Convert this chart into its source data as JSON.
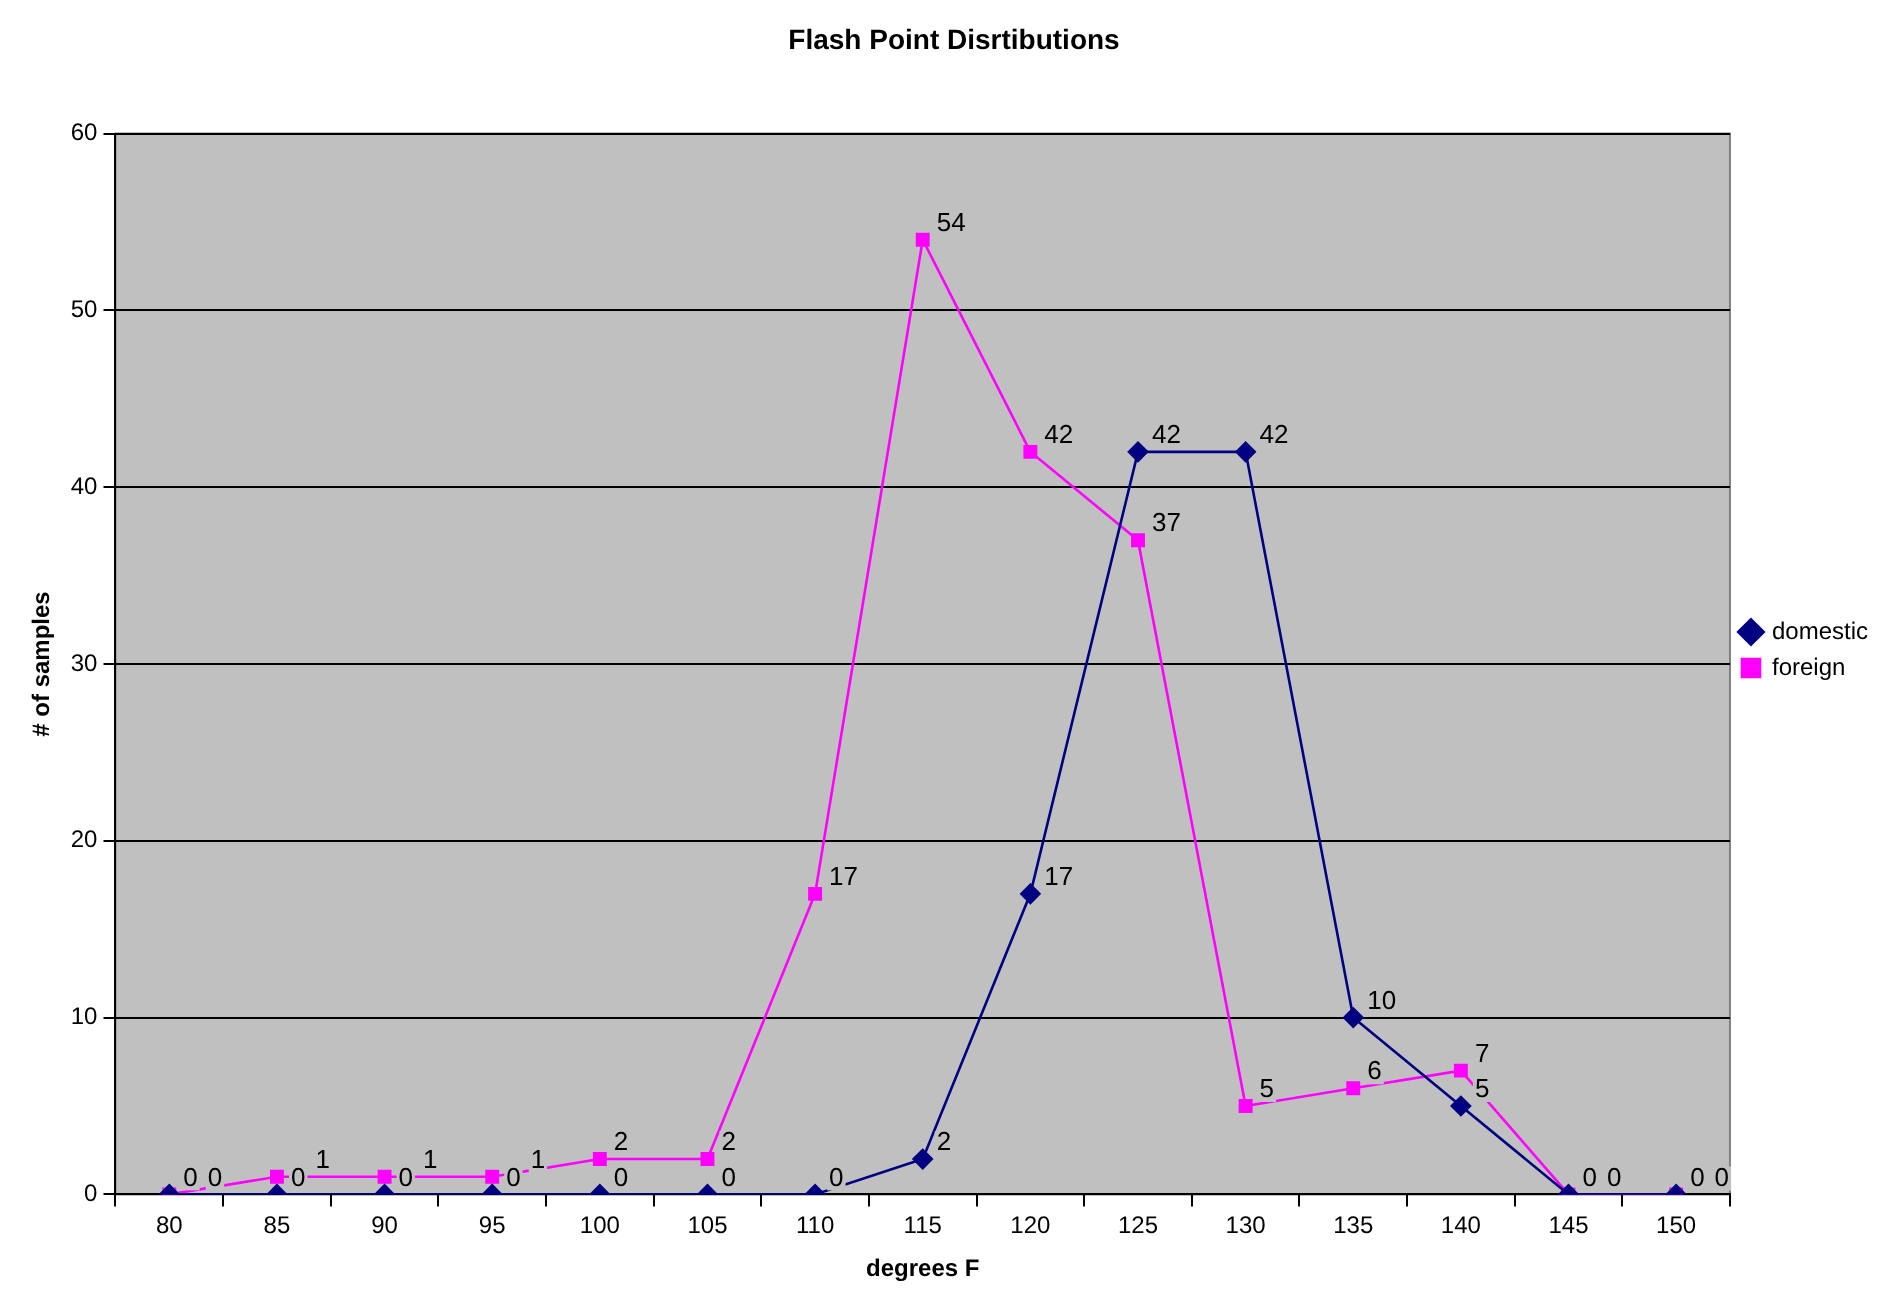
{
  "chart_data": {
    "type": "line",
    "title": "Flash Point Disrtibutions",
    "xlabel": "degrees F",
    "ylabel": "# of samples",
    "categories": [
      "80",
      "85",
      "90",
      "95",
      "100",
      "105",
      "110",
      "115",
      "120",
      "125",
      "130",
      "135",
      "140",
      "145",
      "150"
    ],
    "series": [
      {
        "name": "domestic",
        "color": "#000080",
        "marker": "diamond",
        "values": [
          0,
          0,
          0,
          0,
          0,
          0,
          0,
          2,
          17,
          42,
          42,
          10,
          5,
          0,
          0
        ]
      },
      {
        "name": "foreign",
        "color": "#ff00ff",
        "marker": "square",
        "values": [
          0,
          1,
          1,
          1,
          2,
          2,
          17,
          54,
          42,
          37,
          5,
          6,
          7,
          0,
          0
        ]
      }
    ],
    "ylim": [
      0,
      60
    ],
    "yticks": [
      0,
      10,
      20,
      30,
      40,
      50,
      60
    ],
    "grid": "y",
    "legend": "right",
    "data_labels": true,
    "line_style": "solid"
  }
}
